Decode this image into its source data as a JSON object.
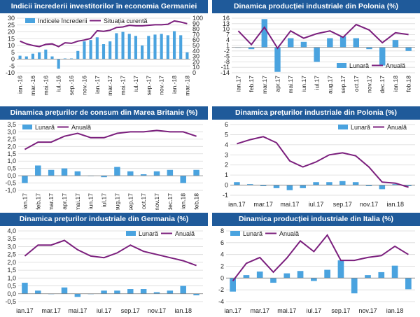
{
  "colors": {
    "bar": "#4aa3df",
    "line": "#7b1f7d",
    "title_bg": "#1f5a9a",
    "grid": "#d9d9d9"
  },
  "chart_data": [
    {
      "type": "bar",
      "title": "Indicii încrederii investitorilor în economia Germaniei",
      "legend_position": "top-left",
      "categories": [
        "ian.-16",
        "feb.-16",
        "mar.-16",
        "apr.-16",
        "mai.-16",
        "iun.-16",
        "iul.-16",
        "aug.-16",
        "sep.-16",
        "oct.-16",
        "nov.-16",
        "dec.-16",
        "ian.-17",
        "feb.-17",
        "mar.-17",
        "apr.-17",
        "mai.-17",
        "iun.-17",
        "iul.-17",
        "aug.-17",
        "sep.-17",
        "oct.-17",
        "nov.-17",
        "dec.-17",
        "ian.-18",
        "feb.-18",
        "mar.-18"
      ],
      "x_tick_labels": [
        "ian.-16",
        "mar.-16",
        "mai.-16",
        "iul.-16",
        "sep.-16",
        "nov.-16",
        "ian.-17",
        "mar.-17",
        "mai.-17",
        "iul.-17",
        "sep.-17",
        "nov.-17",
        "ian.-18",
        "mar.-18"
      ],
      "ylim": [
        -10,
        30
      ],
      "yticks": [
        -10,
        -5,
        0,
        5,
        10,
        15,
        20,
        25,
        30
      ],
      "y2lim": [
        0,
        100
      ],
      "y2ticks": [
        0,
        10,
        20,
        30,
        40,
        50,
        60,
        70,
        80,
        90,
        100
      ],
      "series": [
        {
          "name": "Indicele încrederii",
          "type": "bar",
          "axis": "left",
          "values": [
            2.5,
            2,
            4,
            5,
            7,
            2,
            -7,
            0.5,
            0.5,
            6,
            13,
            14,
            16,
            11,
            13,
            19,
            20,
            18.5,
            17,
            10,
            17,
            18,
            18.5,
            17.5,
            20.5,
            17.5,
            5
          ]
        },
        {
          "name": "Situația curentă",
          "type": "line",
          "axis": "right",
          "values": [
            58,
            53,
            50,
            48,
            52,
            53,
            48,
            55,
            54,
            58,
            60,
            63,
            77,
            76,
            78,
            83,
            84,
            87,
            86,
            86,
            87,
            88,
            88,
            89,
            95,
            93,
            90
          ]
        }
      ]
    },
    {
      "type": "bar",
      "title": "Dinamica producției industriale din Polonia (%)",
      "legend_position": "bottom-right",
      "categories": [
        "ian.17",
        "feb.17",
        "mar.17",
        "apr.17",
        "mai.17",
        "iun.17",
        "iul.17",
        "aug.17",
        "sep.17",
        "oct.17",
        "nov.17",
        "dec.17",
        "ian.18",
        "feb.18"
      ],
      "x_tick_labels": [
        "ian.17",
        "feb.17",
        "mar.17",
        "apr.17",
        "mai.17",
        "iun.17",
        "iul.17",
        "aug.17",
        "sep.17",
        "oct.17",
        "nov.17",
        "dec.17",
        "ian.18",
        "feb.18"
      ],
      "ylim": [
        -14,
        16
      ],
      "yticks": [
        -14,
        -11,
        -8,
        -5,
        -2,
        1,
        4,
        7,
        10,
        13,
        16
      ],
      "series": [
        {
          "name": "Lunară",
          "type": "bar",
          "values": [
            0,
            -1,
            15.5,
            -13.5,
            5,
            3,
            -8,
            5,
            6,
            5,
            -1,
            -10,
            4,
            -2
          ]
        },
        {
          "name": "Anuală",
          "type": "line",
          "values": [
            9,
            1.5,
            11,
            -0.5,
            9,
            5,
            7.5,
            9,
            5.5,
            12.5,
            9.5,
            2.5,
            8,
            7
          ]
        }
      ]
    },
    {
      "type": "bar",
      "title": "Dinamica prețurilor de consum din Marea Britanie (%)",
      "legend_position": "top-left",
      "categories": [
        "ian.17",
        "feb.17",
        "mar.17",
        "apr.17",
        "mai.17",
        "iun.17",
        "iul.17",
        "aug.17",
        "sep.17",
        "oct.17",
        "nov.17",
        "dec.17",
        "ian.18",
        "feb.18"
      ],
      "x_tick_labels": [
        "ian.17",
        "feb.17",
        "mar.17",
        "apr.17",
        "mai.17",
        "iun.17",
        "iul.17",
        "aug.17",
        "sep.17",
        "oct.17",
        "nov.17",
        "dec.17",
        "ian.18",
        "feb.18"
      ],
      "ylim": [
        -1,
        3.5
      ],
      "yticks": [
        -1,
        -0.5,
        0,
        0.5,
        1,
        1.5,
        2,
        2.5,
        3,
        3.5
      ],
      "series": [
        {
          "name": "Lunară",
          "type": "bar",
          "values": [
            -0.5,
            0.7,
            0.4,
            0.5,
            0.3,
            0,
            -0.1,
            0.6,
            0.3,
            0.1,
            0.3,
            0.4,
            -0.5,
            0.4
          ]
        },
        {
          "name": "Anuală",
          "type": "line",
          "values": [
            1.8,
            2.3,
            2.3,
            2.7,
            2.9,
            2.6,
            2.6,
            2.9,
            3.0,
            3.0,
            3.1,
            3.0,
            3.0,
            2.7
          ]
        }
      ]
    },
    {
      "type": "bar",
      "title": "Dinamica prețurilor industriale din Polonia (%)",
      "legend_position": "top-right",
      "categories": [
        "ian.17",
        "feb.17",
        "mar.17",
        "apr.17",
        "mai.17",
        "iun.17",
        "iul.17",
        "aug.17",
        "sep.17",
        "oct.17",
        "nov.17",
        "dec.17",
        "ian.18",
        "feb.18"
      ],
      "x_tick_labels": [
        "ian.17",
        "mar.17",
        "mai.17",
        "iul.17",
        "sep.17",
        "nov.17",
        "ian.18"
      ],
      "ylim": [
        -1,
        6
      ],
      "yticks": [
        -1,
        0,
        1,
        2,
        3,
        4,
        5,
        6
      ],
      "series": [
        {
          "name": "Lunară",
          "type": "bar",
          "values": [
            0.3,
            0.1,
            -0.1,
            -0.3,
            -0.5,
            -0.3,
            0.3,
            0.3,
            0.4,
            0.3,
            -0.1,
            -0.4,
            0.1,
            -0.1
          ]
        },
        {
          "name": "Anuală",
          "type": "line",
          "values": [
            4.1,
            4.5,
            4.8,
            4.2,
            2.4,
            1.8,
            2.3,
            3.0,
            3.2,
            2.9,
            1.8,
            0.3,
            0.2,
            -0.2
          ]
        }
      ]
    },
    {
      "type": "bar",
      "title": "Dinamica prețurilor industriale din Germania (%)",
      "legend_position": "top-right",
      "categories": [
        "ian.17",
        "feb.17",
        "mar.17",
        "apr.17",
        "mai.17",
        "iun.17",
        "iul.17",
        "aug.17",
        "sep.17",
        "oct.17",
        "nov.17",
        "dec.17",
        "ian.18",
        "feb.18"
      ],
      "x_tick_labels": [
        "ian.17",
        "mar.17",
        "mai.17",
        "iul.17",
        "sep.17",
        "nov.17",
        "ian.18"
      ],
      "ylim": [
        -0.5,
        4
      ],
      "yticks": [
        -0.5,
        0,
        0.5,
        1,
        1.5,
        2,
        2.5,
        3,
        3.5,
        4
      ],
      "series": [
        {
          "name": "Lunară",
          "type": "bar",
          "values": [
            0.7,
            0.2,
            0,
            0.4,
            -0.2,
            0,
            0.2,
            0.2,
            0.3,
            0.3,
            0.1,
            0.2,
            0.5,
            -0.1
          ]
        },
        {
          "name": "Anuală",
          "type": "line",
          "values": [
            2.4,
            3.1,
            3.1,
            3.4,
            2.8,
            2.4,
            2.3,
            2.6,
            3.1,
            2.7,
            2.5,
            2.3,
            2.1,
            1.8
          ]
        }
      ]
    },
    {
      "type": "bar",
      "title": "Dinamica producției industriale din Italia (%)",
      "legend_position": "top-left",
      "categories": [
        "ian.17",
        "feb.17",
        "mar.17",
        "apr.17",
        "mai.17",
        "iun.17",
        "iul.17",
        "aug.17",
        "sep.17",
        "oct.17",
        "nov.17",
        "dec.17",
        "ian.18",
        "feb.18"
      ],
      "x_tick_labels": [
        "ian.17",
        "mar.17",
        "mai.17",
        "iul.17",
        "sep.17",
        "nov.17",
        "ian.18"
      ],
      "ylim": [
        -4,
        8
      ],
      "yticks": [
        -4,
        -2,
        0,
        2,
        4,
        6,
        8
      ],
      "series": [
        {
          "name": "Lunară",
          "type": "bar",
          "values": [
            -2.3,
            0.5,
            1.1,
            -0.8,
            0.8,
            1.2,
            -0.5,
            1.4,
            3.0,
            -2.6,
            0.5,
            1.0,
            2.1,
            -1.9
          ]
        },
        {
          "name": "Anuală",
          "type": "line",
          "values": [
            -0.5,
            2.5,
            3.5,
            1.0,
            3.4,
            6.3,
            4.5,
            7.3,
            3.0,
            3.0,
            3.5,
            3.8,
            5.4,
            4.0
          ]
        }
      ]
    }
  ]
}
